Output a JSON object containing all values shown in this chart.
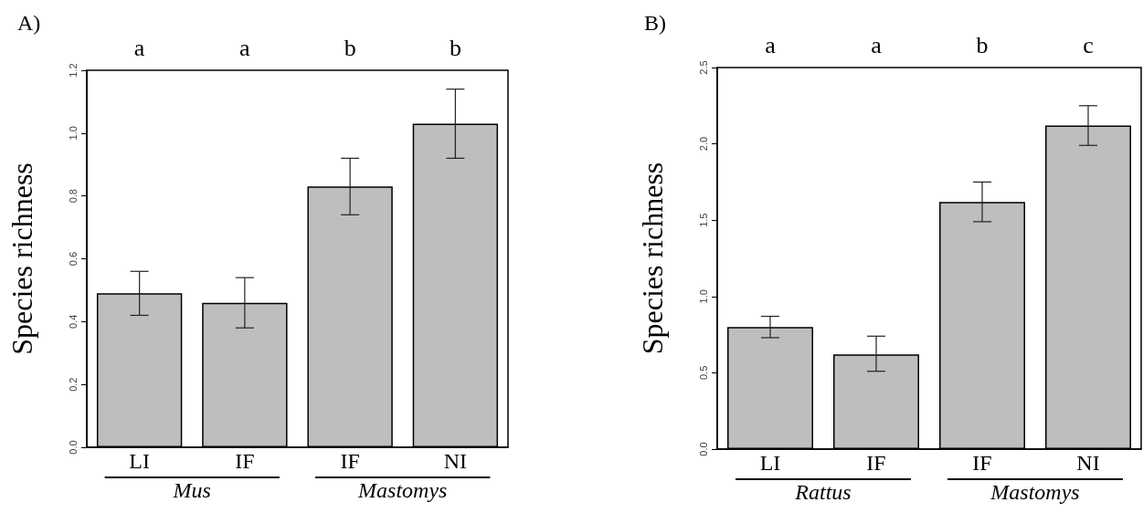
{
  "chart_data": [
    {
      "type": "bar",
      "title": "A)",
      "ylabel": "Species richness",
      "categories": [
        "LI",
        "IF",
        "IF",
        "NI"
      ],
      "values": [
        0.49,
        0.46,
        0.83,
        1.03
      ],
      "errors": [
        [
          0.42,
          0.56
        ],
        [
          0.38,
          0.54
        ],
        [
          0.74,
          0.92
        ],
        [
          0.92,
          1.14
        ]
      ],
      "color": "#bebebe",
      "ylim": [
        0,
        1.2
      ],
      "yticks": [
        {
          "value": 0,
          "label": "0.0"
        },
        0.2,
        0.4,
        0.6,
        0.8,
        {
          "value": 1,
          "label": "1.0"
        },
        1.2
      ],
      "grid": false,
      "annotations": [
        "a",
        "a",
        "b",
        "b",
        "Mus",
        "Mastomys"
      ]
    },
    {
      "type": "bar",
      "title": "B)",
      "ylabel": "Species richness",
      "categories": [
        "LI",
        "IF",
        "IF",
        "NI"
      ],
      "values": [
        0.8,
        0.62,
        1.62,
        2.12
      ],
      "errors": [
        [
          0.73,
          0.87
        ],
        [
          0.51,
          0.74
        ],
        [
          1.49,
          1.75
        ],
        [
          1.99,
          2.25
        ]
      ],
      "color": "#bebebe",
      "ylim": [
        0,
        2.5
      ],
      "yticks": [
        {
          "value": 0,
          "label": "0.0"
        },
        0.5,
        {
          "value": 1,
          "label": "1.0"
        },
        1.5,
        {
          "value": 2,
          "label": "2.0"
        },
        2.5
      ],
      "grid": false,
      "annotations": [
        "a",
        "a",
        "b",
        "c",
        "Rattus",
        "Mastomys"
      ]
    }
  ]
}
